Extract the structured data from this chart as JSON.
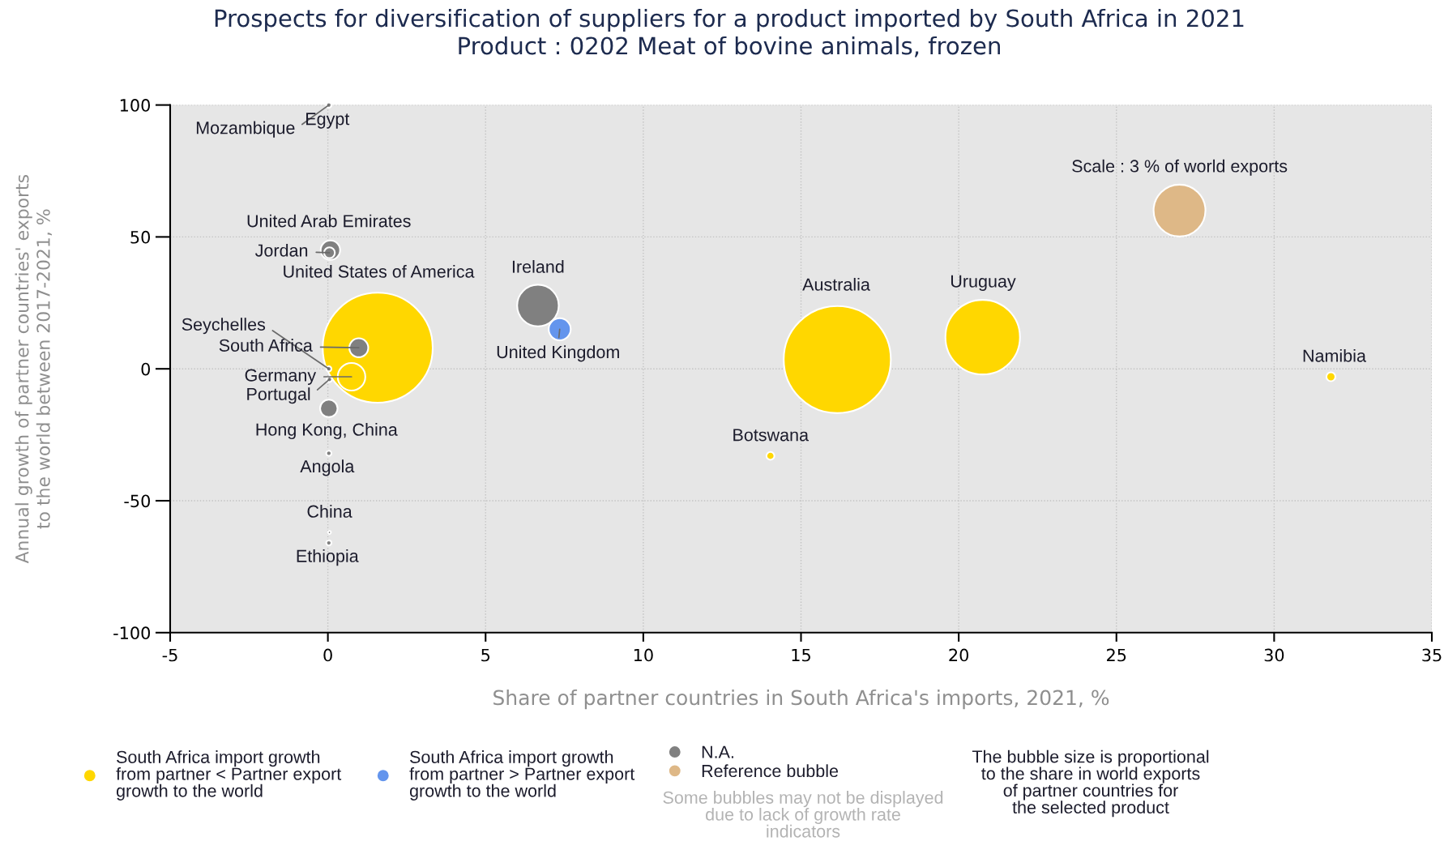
{
  "chart_data": {
    "type": "bubble",
    "title": "Prospects for diversification of suppliers for a product imported by South Africa in 2021",
    "subtitle": "Product : 0202 Meat of bovine animals, frozen",
    "xlabel": "Share of partner countries in South Africa's imports, 2021, %",
    "ylabel": "Annual growth of partner countries' exports\nto the world between 2017-2021, %",
    "xlim": [
      -5,
      35
    ],
    "xticks": [
      -5,
      0,
      5,
      10,
      15,
      20,
      25,
      30,
      35
    ],
    "ylim": [
      -100,
      100
    ],
    "yticks": [
      -100,
      -50,
      0,
      50,
      100
    ],
    "grid": true,
    "marker": "circle",
    "legend": "bottom",
    "size_legend": [
      {
        "value": 3,
        "label": "Scale : 3 % of world exports"
      }
    ],
    "series": [
      {
        "name": "South Africa import growth\nfrom partner < Partner export\ngrowth to the world",
        "color": "#ffd700",
        "x": [
          1.58,
          0.75,
          16.15,
          20.76,
          14.03,
          31.8
        ],
        "values": [
          8,
          -3,
          3.5,
          12,
          -33,
          -3
        ],
        "sizes": [
          13.5,
          0.85,
          12.8,
          6.2,
          0.07,
          0.09
        ]
      },
      {
        "name": "South Africa import growth\nfrom partner > Partner export\ngrowth to the world",
        "color": "#6495ed",
        "x": [
          7.35
        ],
        "values": [
          15
        ],
        "sizes": [
          0.54
        ]
      },
      {
        "name": "N.A.",
        "color": "#808080",
        "x": [
          0.03,
          0.03,
          0.08,
          0.05,
          0.98,
          0.03,
          0.05,
          0.03,
          0.03,
          0.05,
          0.03,
          6.66
        ],
        "values": [
          100,
          100,
          45,
          44,
          8,
          0,
          -4,
          -15,
          -32,
          -62,
          -66,
          24
        ],
        "sizes": [
          0.03,
          0.03,
          0.42,
          0.13,
          0.4,
          0.03,
          0.03,
          0.34,
          0.03,
          0.01,
          0.03,
          1.93
        ]
      },
      {
        "name": "Reference bubble",
        "color": "#deb887"
      }
    ],
    "annotations": [
      {
        "text": "Mozambique",
        "x": 0.03,
        "y": 100
      },
      {
        "text": "Egypt",
        "x": 0.03,
        "y": 100
      },
      {
        "text": "United Arab Emirates",
        "x": 0.08,
        "y": 45
      },
      {
        "text": "Jordan",
        "x": 0.05,
        "y": 44
      },
      {
        "text": "Seychelles",
        "x": 0.03,
        "y": 0
      },
      {
        "text": "South Africa",
        "x": 0.98,
        "y": 8
      },
      {
        "text": "Germany",
        "x": 0.75,
        "y": -3
      },
      {
        "text": "Portugal",
        "x": 0.05,
        "y": -4
      },
      {
        "text": "Hong Kong, China",
        "x": 0.03,
        "y": -15
      },
      {
        "text": "Angola",
        "x": 0.03,
        "y": -32
      },
      {
        "text": "China",
        "x": 0.05,
        "y": -62
      },
      {
        "text": "Ethiopia",
        "x": 0.03,
        "y": -66
      },
      {
        "text": "Ireland",
        "x": 6.66,
        "y": 24
      },
      {
        "text": "United Kingdom",
        "x": 7.35,
        "y": 15
      },
      {
        "text": "Botswana",
        "x": 14.03,
        "y": -33
      },
      {
        "text": "Namibia",
        "x": 31.8,
        "y": -3
      },
      "United States of America",
      "Australia",
      "Uruguay",
      "Some bubbles may not be displayed\ndue to lack of growth rate\nindicators",
      "The bubble size is proportional\nto the share in world exports\nof partner countries for\nthe selected product"
    ]
  }
}
